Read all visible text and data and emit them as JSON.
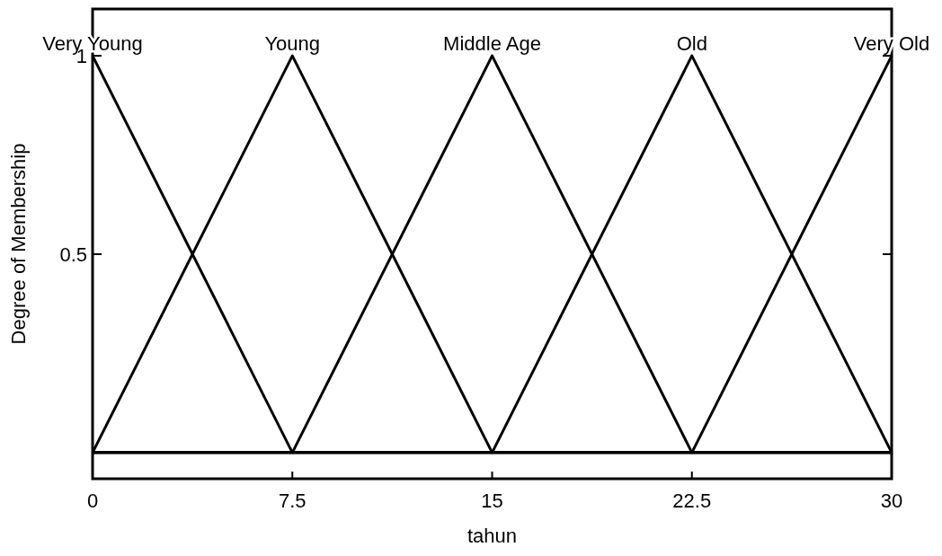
{
  "chart_data": {
    "type": "line",
    "xlabel": "tahun",
    "ylabel": "Degree of Membership",
    "xlim": [
      0,
      30
    ],
    "ylim": [
      -0.066,
      1.118
    ],
    "xticks": [
      0,
      7.5,
      15,
      22.5,
      30
    ],
    "yticks": [
      0.5,
      1
    ],
    "grid": false,
    "marker": "none",
    "line_style": "solid",
    "series": [
      {
        "name": "Very Young",
        "color": "#000000",
        "x": [
          0,
          7.5,
          30
        ],
        "values": [
          1,
          0,
          0
        ]
      },
      {
        "name": "Young",
        "color": "#000000",
        "x": [
          0,
          7.5,
          15,
          30
        ],
        "values": [
          0,
          1,
          0,
          0
        ]
      },
      {
        "name": "Middle Age",
        "color": "#000000",
        "x": [
          0,
          7.5,
          15,
          22.5,
          30
        ],
        "values": [
          0,
          0,
          1,
          0,
          0
        ]
      },
      {
        "name": "Old",
        "color": "#000000",
        "x": [
          0,
          15,
          22.5,
          30
        ],
        "values": [
          0,
          0,
          1,
          0
        ]
      },
      {
        "name": "Very Old",
        "color": "#000000",
        "x": [
          0,
          22.5,
          30
        ],
        "values": [
          0,
          0,
          1
        ]
      }
    ]
  }
}
